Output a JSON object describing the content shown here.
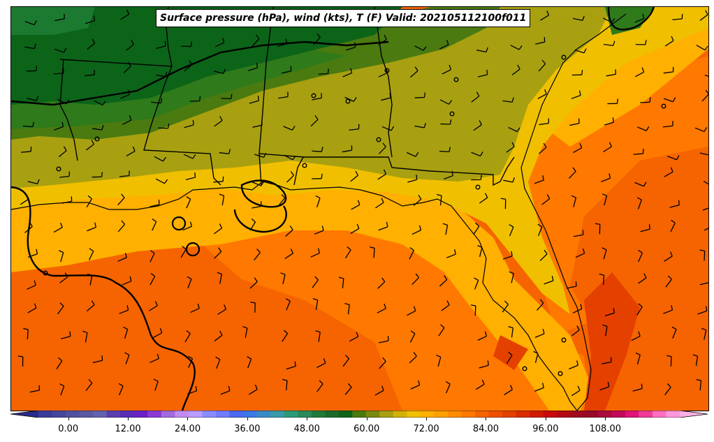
{
  "title": "Surface pressure (hPa), wind (kts), T (F) Valid: 202105112100f011",
  "colorbar": {
    "ticks": [
      "0.00",
      "12.00",
      "24.00",
      "36.00",
      "48.00",
      "60.00",
      "72.00",
      "84.00",
      "96.00",
      "108.00"
    ],
    "colors": [
      "#3b3b9a",
      "#45459c",
      "#50509f",
      "#5a5aa4",
      "#6262b0",
      "#5b3eb0",
      "#5a2cb8",
      "#6a22c6",
      "#8c3ad6",
      "#a36ae0",
      "#c08cf0",
      "#b89cff",
      "#8a8cff",
      "#6f7cff",
      "#4a6af0",
      "#3a78e6",
      "#3a8ac8",
      "#3a9aaa",
      "#2c9a78",
      "#2a8a5a",
      "#1f7a3a",
      "#1c6a2a",
      "#0c6418",
      "#4a7a10",
      "#7a8a10",
      "#a8a010",
      "#d2b208",
      "#f0c000",
      "#ffb000",
      "#ffa000",
      "#ff8c00",
      "#ff7800",
      "#f56400",
      "#ee5000",
      "#e44000",
      "#dc2c00",
      "#d01a00",
      "#c80a0a",
      "#b40a14",
      "#a00a1e",
      "#960a2a",
      "#aa0a3c",
      "#c20a5a",
      "#e01478",
      "#f03c96",
      "#ff6ec0",
      "#ff96dc"
    ]
  },
  "legend_scale": {
    "variable": "T (F)",
    "min": -6,
    "max": 123,
    "extend": "both"
  },
  "map_colors": {
    "temp_60_65": "#1c6a2a",
    "temp_63": "#0c6418",
    "temp_66": "#4a7a10",
    "temp_69": "#a8a010",
    "temp_72": "#f0c000",
    "temp_75": "#ffb000",
    "temp_78": "#ff7800",
    "temp_81": "#f56400",
    "temp_84": "#e44000",
    "isobar": "#000000"
  }
}
